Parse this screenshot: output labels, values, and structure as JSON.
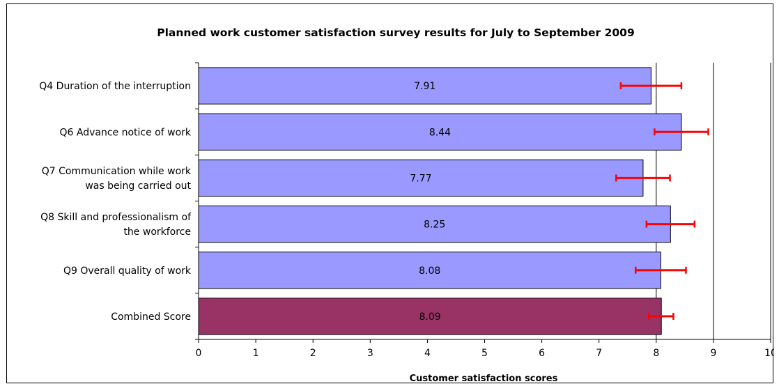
{
  "chart_data": {
    "type": "bar",
    "orientation": "horizontal",
    "title": "Planned work customer satisfaction survey results for July to September 2009",
    "xlabel": "Customer satisfaction scores",
    "ylabel": "",
    "xlim": [
      0,
      10
    ],
    "xticks": [
      "0",
      "1",
      "2",
      "3",
      "4",
      "5",
      "6",
      "7",
      "8",
      "9",
      "10"
    ],
    "grid": "vertical lines at 8, 9, 10",
    "categories": [
      [
        "Q4 Duration of the interruption"
      ],
      [
        "Q6  Advance notice of work"
      ],
      [
        "Q7 Communication while work",
        "was being carried out"
      ],
      [
        "Q8 Skill and professionalism of",
        "the workforce"
      ],
      [
        "Q9 Overall quality of work"
      ],
      [
        "Combined Score"
      ]
    ],
    "values": [
      7.91,
      8.44,
      7.77,
      8.25,
      8.08,
      8.09
    ],
    "value_labels": [
      "7.91",
      "8.44",
      "7.77",
      "8.25",
      "8.08",
      "8.09"
    ],
    "error_bars": [
      [
        7.38,
        8.44
      ],
      [
        7.97,
        8.91
      ],
      [
        7.3,
        8.24
      ],
      [
        7.83,
        8.67
      ],
      [
        7.64,
        8.52
      ],
      [
        7.87,
        8.3
      ]
    ],
    "colors": {
      "question_bar": "#9999ff",
      "combined_bar": "#993366",
      "error_bar": "#ff0000",
      "bar_border": "#000000"
    }
  }
}
